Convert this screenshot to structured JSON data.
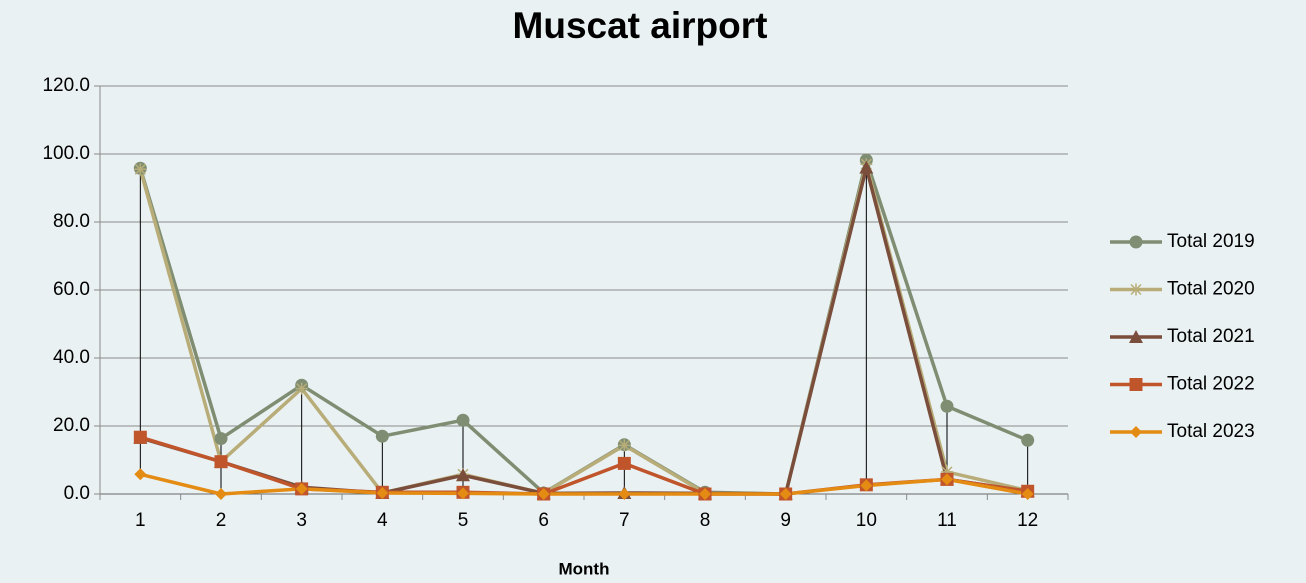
{
  "chart_data": {
    "type": "line",
    "title": "Muscat airport",
    "x_label": "Month",
    "categories": [
      "1",
      "2",
      "3",
      "4",
      "5",
      "6",
      "7",
      "8",
      "9",
      "10",
      "11",
      "12"
    ],
    "series": [
      {
        "name": "Total 2019",
        "color": "#7f8e72",
        "marker": "circle",
        "values": [
          95.8,
          16.3,
          32.0,
          17.0,
          21.7,
          0.3,
          14.5,
          0.5,
          0.0,
          98.2,
          25.8,
          15.8
        ]
      },
      {
        "name": "Total 2020",
        "color": "#b8ad78",
        "marker": "star",
        "values": [
          95.5,
          9.5,
          31.0,
          0.3,
          5.8,
          0.2,
          14.3,
          0.3,
          0.0,
          97.0,
          6.5,
          1.0
        ]
      },
      {
        "name": "Total 2021",
        "color": "#7a4e3b",
        "marker": "triangle",
        "values": [
          16.5,
          9.5,
          2.0,
          0.3,
          5.5,
          0.2,
          0.3,
          0.2,
          0.0,
          96.0,
          4.3,
          0.8
        ]
      },
      {
        "name": "Total 2022",
        "color": "#c0542b",
        "marker": "square",
        "values": [
          16.7,
          9.5,
          1.5,
          0.5,
          0.5,
          0.0,
          9.0,
          0.0,
          0.0,
          2.7,
          4.3,
          0.8
        ]
      },
      {
        "name": "Total 2023",
        "color": "#e38b12",
        "marker": "diamond",
        "values": [
          5.8,
          0.0,
          1.5,
          0.3,
          0.2,
          0.0,
          0.0,
          0.0,
          0.0,
          2.5,
          4.3,
          0.0
        ]
      }
    ],
    "ylim": [
      0,
      120
    ],
    "yticks": [
      {
        "value": 0,
        "label": "0.0"
      },
      {
        "value": 20,
        "label": "20.0"
      },
      {
        "value": 40,
        "label": "40.0"
      },
      {
        "value": 60,
        "label": "60.0"
      },
      {
        "value": 80,
        "label": "80.0"
      },
      {
        "value": 100,
        "label": "100.0"
      },
      {
        "value": 120,
        "label": "120.0"
      }
    ],
    "grid": true,
    "high_low_lines": true,
    "legend": "right"
  }
}
